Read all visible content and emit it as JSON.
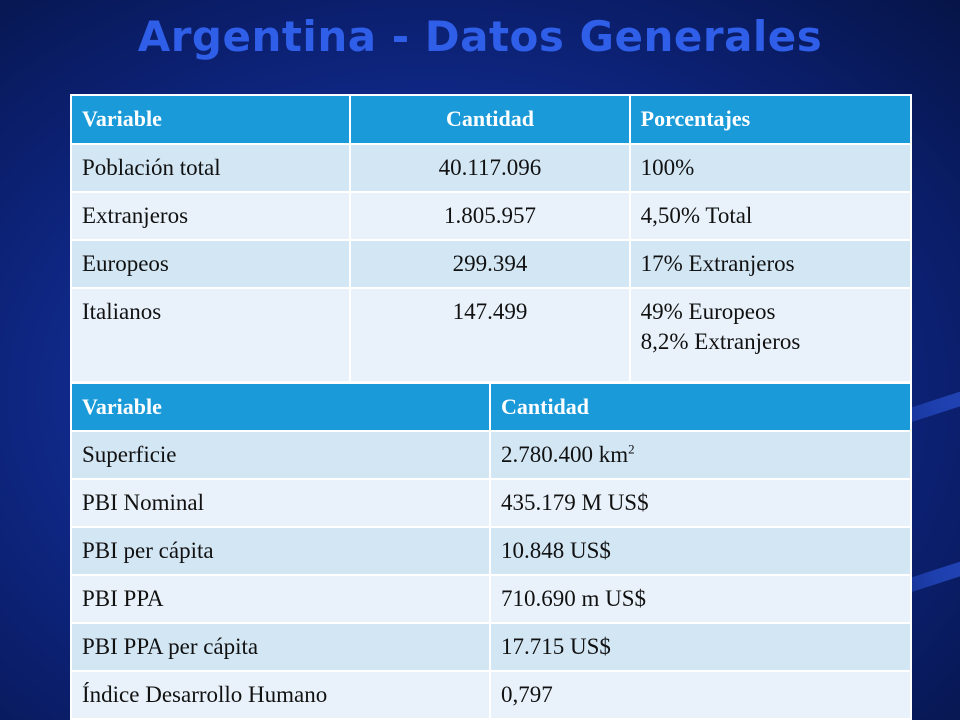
{
  "slide": {
    "title": "Argentina - Datos Generales"
  },
  "table1": {
    "headers": [
      "Variable",
      "Cantidad",
      "Porcentajes"
    ],
    "rows": [
      {
        "variable": "Población total",
        "cantidad": "40.117.096",
        "porcentaje": "100%"
      },
      {
        "variable": "Extranjeros",
        "cantidad": "1.805.957",
        "porcentaje": "4,50% Total"
      },
      {
        "variable": "Europeos",
        "cantidad": "299.394",
        "porcentaje": "17% Extranjeros"
      },
      {
        "variable": "Italianos",
        "cantidad": "147.499",
        "porcentaje_line1": "49% Europeos",
        "porcentaje_line2": "8,2% Extranjeros"
      }
    ]
  },
  "table2": {
    "headers": [
      "Variable",
      "Cantidad"
    ],
    "rows": [
      {
        "variable": "Superficie",
        "cantidad": "2.780.400 km",
        "superscript": "2"
      },
      {
        "variable": "PBI Nominal",
        "cantidad": "435.179 M US$"
      },
      {
        "variable": "PBI per cápita",
        "cantidad": "10.848 US$"
      },
      {
        "variable": "PBI PPA",
        "cantidad": "710.690 m US$"
      },
      {
        "variable": "PBI PPA per cápita",
        "cantidad": "17.715 US$"
      },
      {
        "variable": "Índice Desarrollo Humano",
        "cantidad": "0,797"
      }
    ]
  }
}
